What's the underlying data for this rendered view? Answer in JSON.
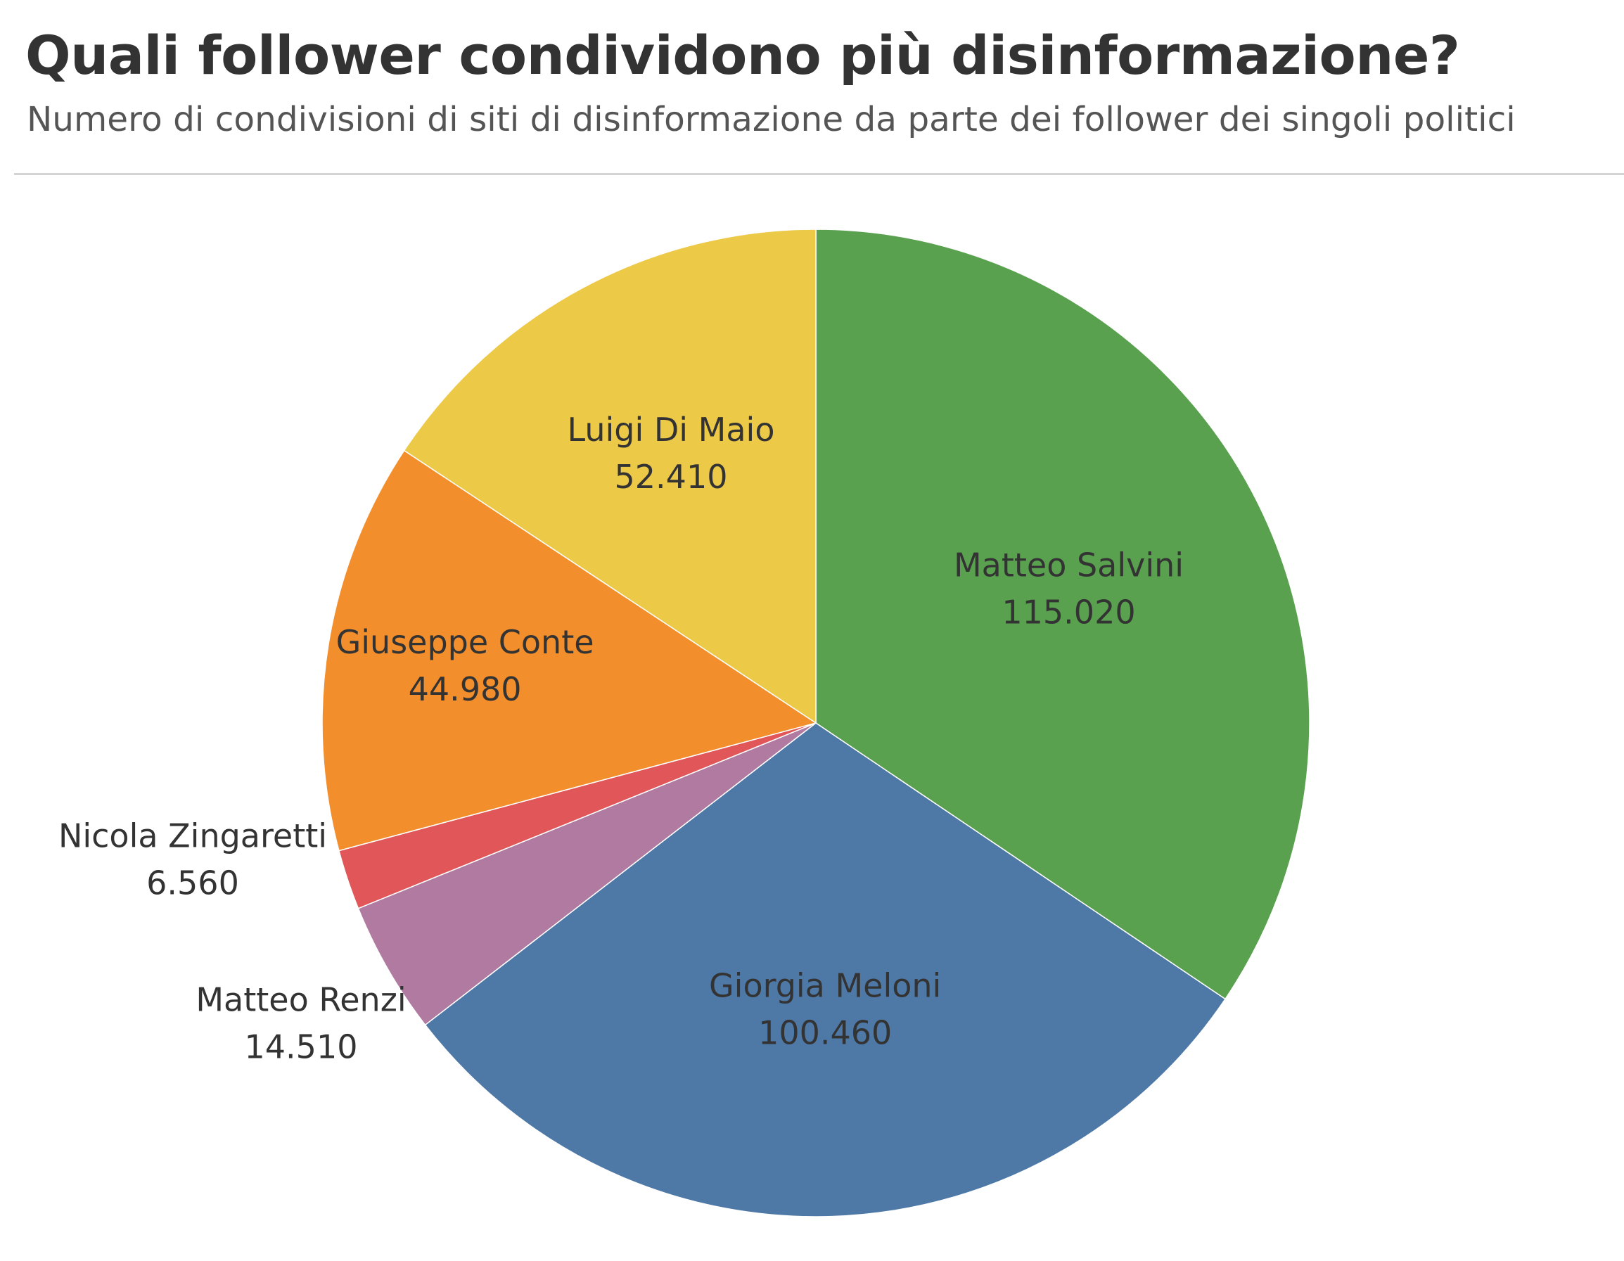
{
  "chart_data": {
    "type": "pie",
    "title": "Quali follower condividono più disinformazione?",
    "subtitle": "Numero di condivisioni di siti di disinformazione da parte dei follower dei singoli politici",
    "slices": [
      {
        "label": "Matteo Salvini",
        "value": 115020,
        "value_label": "115.020",
        "color": "#59A14F"
      },
      {
        "label": "Giorgia Meloni",
        "value": 100460,
        "value_label": "100.460",
        "color": "#4E79A7"
      },
      {
        "label": "Matteo Renzi",
        "value": 14510,
        "value_label": "14.510",
        "color": "#B07AA1"
      },
      {
        "label": "Nicola Zingaretti",
        "value": 6560,
        "value_label": "6.560",
        "color": "#E15759"
      },
      {
        "label": "Giuseppe Conte",
        "value": 44980,
        "value_label": "44.980",
        "color": "#F28E2B"
      },
      {
        "label": "Luigi Di Maio",
        "value": 52410,
        "value_label": "52.410",
        "color": "#EDC948"
      }
    ]
  }
}
